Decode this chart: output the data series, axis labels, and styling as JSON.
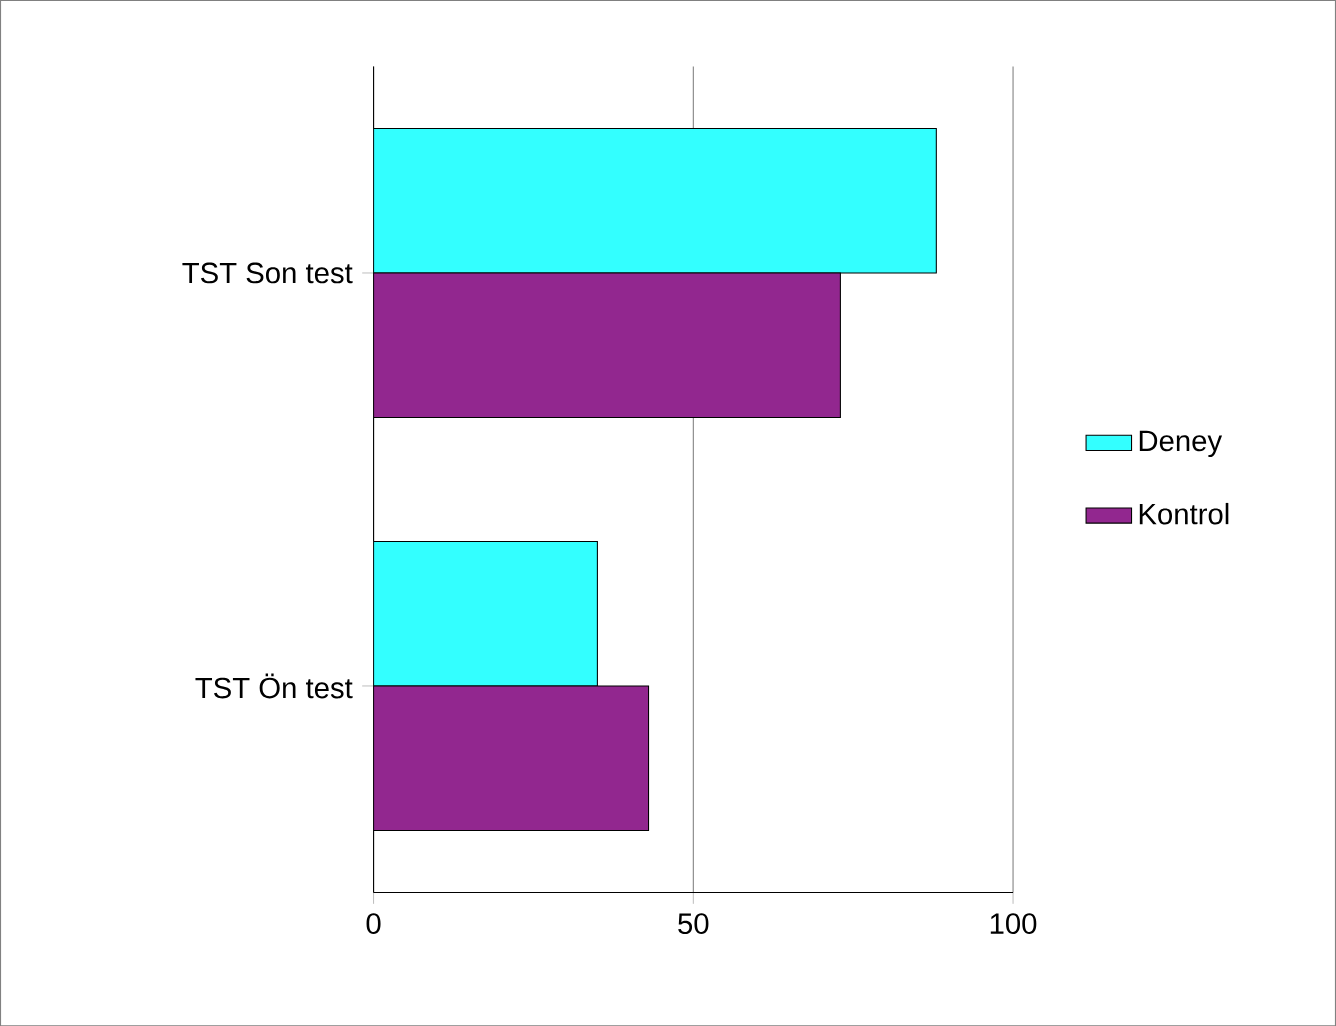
{
  "chart_data": {
    "type": "bar",
    "orientation": "horizontal",
    "categories": [
      "TST Son test",
      "TST Ön test"
    ],
    "series": [
      {
        "name": "Deney",
        "color": "#33ffff",
        "values": [
          88,
          35
        ]
      },
      {
        "name": "Kontrol",
        "color": "#92278f",
        "values": [
          73,
          43
        ]
      }
    ],
    "xlim": [
      0,
      100
    ],
    "xticks": [
      0,
      50,
      100
    ],
    "grid": "x",
    "legend": "right"
  }
}
